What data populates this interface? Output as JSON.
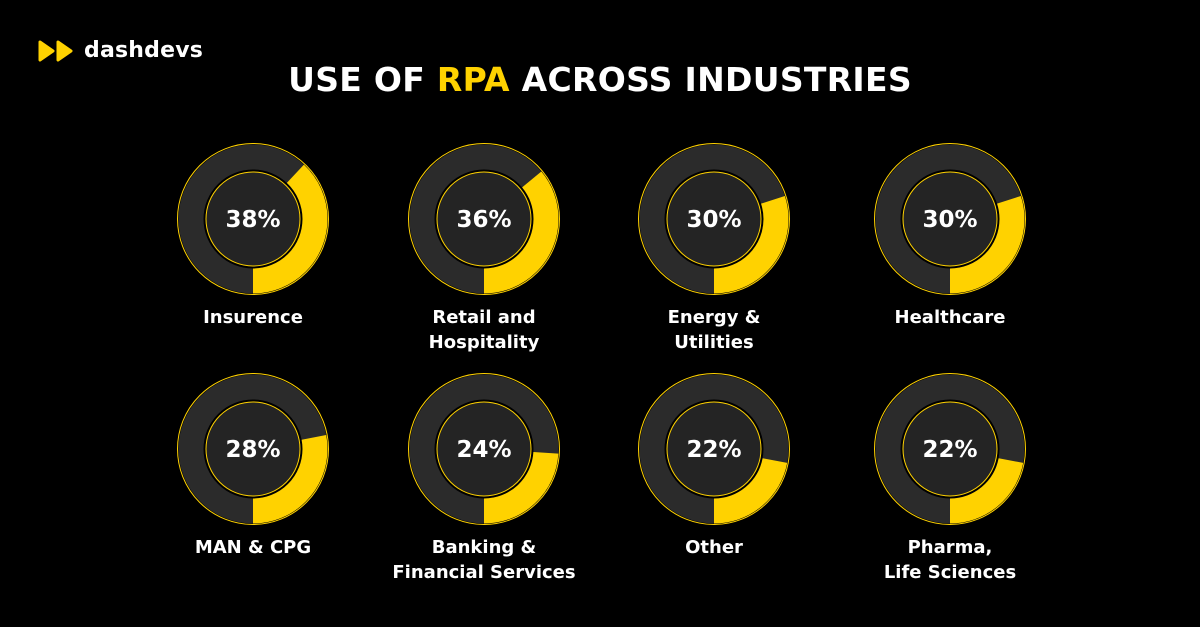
{
  "brand": {
    "name": "dashdevs",
    "accent_color": "#FFD200"
  },
  "title": {
    "part1": "USE OF ",
    "highlight": "RPA",
    "part2": " ACROSS INDUSTRIES"
  },
  "colors": {
    "background": "#000000",
    "ring_track": "#2b2b2b",
    "ring_fill": "#FFD200",
    "inner_circle": "#242424",
    "text": "#ffffff"
  },
  "chart_data": {
    "type": "pie",
    "title": "USE OF RPA ACROSS INDUSTRIES",
    "items": [
      {
        "value": 38,
        "value_label": "38%",
        "label_lines": [
          "Insurence"
        ]
      },
      {
        "value": 36,
        "value_label": "36%",
        "label_lines": [
          "Retail and",
          "Hospitality"
        ]
      },
      {
        "value": 30,
        "value_label": "30%",
        "label_lines": [
          "Energy &",
          "Utilities"
        ]
      },
      {
        "value": 30,
        "value_label": "30%",
        "label_lines": [
          "Healthcare"
        ]
      },
      {
        "value": 28,
        "value_label": "28%",
        "label_lines": [
          "MAN & CPG"
        ]
      },
      {
        "value": 24,
        "value_label": "24%",
        "label_lines": [
          "Banking &",
          "Financial Services"
        ]
      },
      {
        "value": 22,
        "value_label": "22%",
        "label_lines": [
          "Other"
        ]
      },
      {
        "value": 22,
        "value_label": "22%",
        "label_lines": [
          "Pharma,",
          "Life Sciences"
        ]
      }
    ]
  }
}
